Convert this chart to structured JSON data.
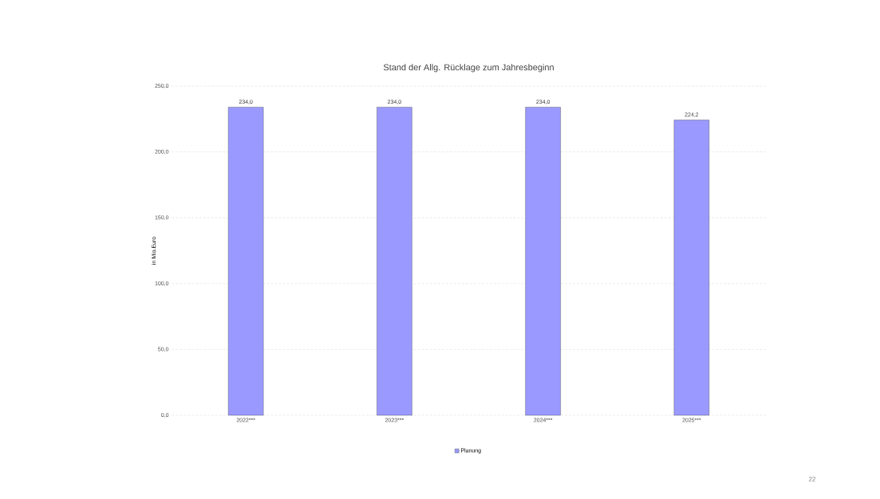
{
  "chart_data": {
    "type": "bar",
    "title": "Stand der Allg. Rücklage zum Jahresbeginn",
    "ylabel": "in Mio.Euro",
    "categories": [
      "2022***",
      "2023***",
      "2024***",
      "2025***"
    ],
    "series": [
      {
        "name": "Planung",
        "color": "#9999ff",
        "values": [
          234.0,
          234.0,
          234.0,
          224.2
        ],
        "value_labels": [
          "234,0",
          "234,0",
          "234,0",
          "224,2"
        ]
      }
    ],
    "ylim": [
      0,
      250
    ],
    "yticks": [
      {
        "value": 0,
        "label": "0,0"
      },
      {
        "value": 50,
        "label": "50,0"
      },
      {
        "value": 100,
        "label": "100,0"
      },
      {
        "value": 150,
        "label": "150,0"
      },
      {
        "value": 200,
        "label": "200,0"
      },
      {
        "value": 250,
        "label": "250,0"
      }
    ],
    "grid": "y",
    "legend": "bottom",
    "annotations": [
      "22"
    ]
  }
}
